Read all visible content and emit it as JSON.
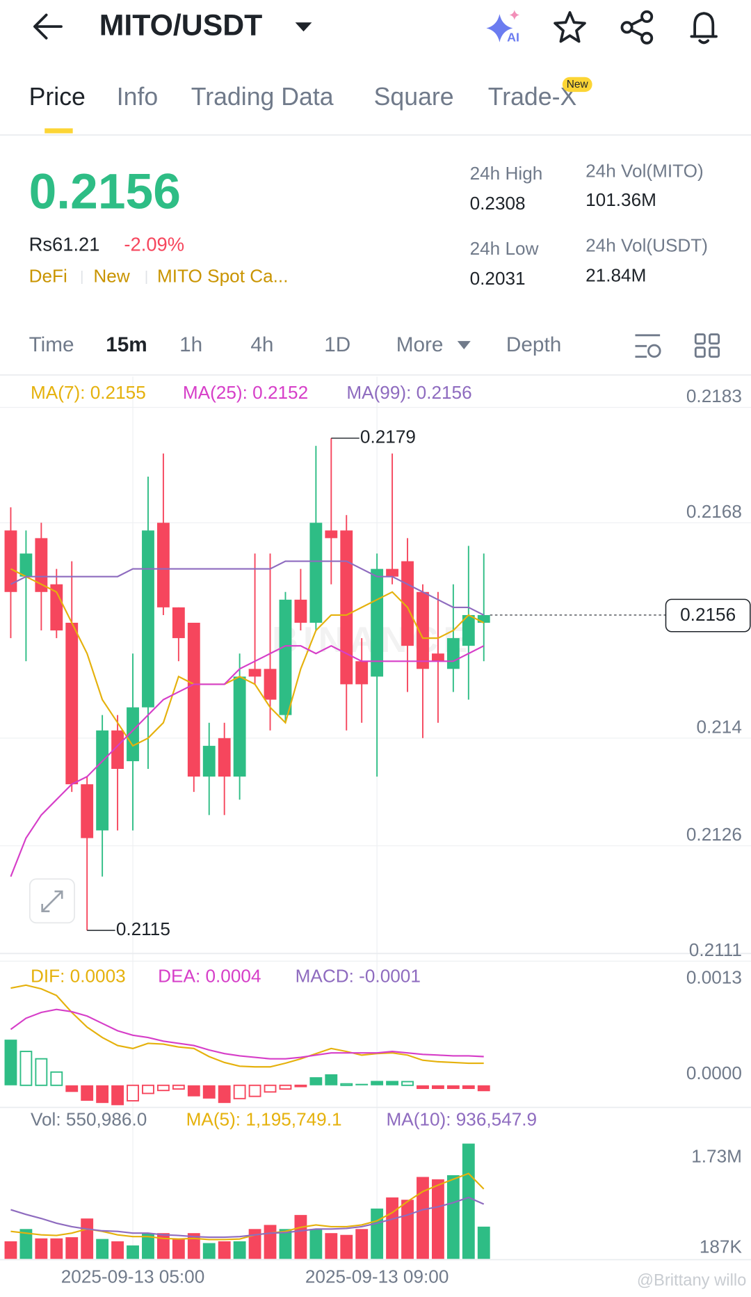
{
  "header": {
    "title": "MITO/USDT",
    "ai_label": "AI"
  },
  "tabs": [
    "Price",
    "Info",
    "Trading Data",
    "Square",
    "Trade-X"
  ],
  "new_badge": "New",
  "ticker": {
    "price": "0.2156",
    "fiat": "Rs61.21",
    "change": "-2.09%",
    "tags": [
      "DeFi",
      "New",
      "MITO Spot Ca..."
    ],
    "stats": [
      {
        "label": "24h High",
        "value": "0.2308"
      },
      {
        "label": "24h Low",
        "value": "0.2031"
      },
      {
        "label": "24h Vol(MITO)",
        "value": "101.36M"
      },
      {
        "label": "24h Vol(USDT)",
        "value": "21.84M"
      }
    ]
  },
  "intervals": [
    "Time",
    "15m",
    "1h",
    "4h",
    "1D",
    "More",
    "Depth"
  ],
  "watermark": "@Brittany willo",
  "brand_watermark": "BINANCE",
  "chart_data": [
    {
      "type": "candlestick",
      "legend": [
        "MA(7): 0.2155",
        "MA(25): 0.2152",
        "MA(99): 0.2156"
      ],
      "categories": [
        null,
        null,
        null,
        null,
        null,
        null,
        null,
        null,
        "2025-09-13 05:00",
        null,
        null,
        null,
        null,
        null,
        null,
        null,
        null,
        null,
        null,
        null,
        null,
        null,
        null,
        null,
        "2025-09-13 09:00",
        null,
        null,
        null,
        null,
        null,
        null,
        null
      ],
      "open": [
        0.2167,
        0.2161,
        0.2166,
        0.216,
        0.2155,
        0.2134,
        0.2128,
        0.2141,
        0.2137,
        0.2144,
        0.2168,
        0.2157,
        0.2155,
        0.2135,
        0.214,
        0.2135,
        0.2149,
        0.2149,
        0.2143,
        0.2158,
        0.2155,
        0.2167,
        0.2167,
        0.215,
        0.2148,
        0.2162,
        0.2163,
        0.2159,
        0.2151,
        0.2149,
        0.2152,
        0.2155
      ],
      "high": [
        0.217,
        0.2167,
        0.2168,
        0.2162,
        0.2163,
        0.2135,
        0.2143,
        0.2143,
        0.2151,
        0.2174,
        0.2177,
        0.2157,
        0.2155,
        0.2142,
        0.2142,
        0.2151,
        0.2164,
        0.2164,
        0.2159,
        0.2162,
        0.2178,
        0.2179,
        0.2169,
        0.2153,
        0.2164,
        0.2177,
        0.2166,
        0.216,
        0.2159,
        0.216,
        0.2165,
        0.2164
      ],
      "low": [
        0.2153,
        0.215,
        0.2154,
        0.2153,
        0.2133,
        0.2115,
        0.2122,
        0.2128,
        0.2128,
        0.2136,
        0.2156,
        0.215,
        0.2133,
        0.213,
        0.213,
        0.2132,
        0.2147,
        0.2141,
        0.2142,
        0.2154,
        0.2154,
        0.216,
        0.2141,
        0.2142,
        0.2135,
        0.216,
        0.2146,
        0.214,
        0.2142,
        0.2146,
        0.2145,
        0.215
      ],
      "close": [
        0.2159,
        0.2164,
        0.2159,
        0.2154,
        0.2134,
        0.2127,
        0.2141,
        0.2136,
        0.2144,
        0.2167,
        0.2157,
        0.2153,
        0.2135,
        0.2139,
        0.2135,
        0.2148,
        0.2148,
        0.2145,
        0.2158,
        0.2155,
        0.2168,
        0.2166,
        0.2147,
        0.2147,
        0.2162,
        0.2161,
        0.2152,
        0.2149,
        0.215,
        0.2153,
        0.2156,
        0.2156
      ],
      "up_color": "#2ebd85",
      "down_color": "#f6465d",
      "series": [
        {
          "name": "MA(7)",
          "color": "#e5b10c",
          "values": [
            0.2162,
            0.2161,
            0.216,
            0.2159,
            0.2155,
            0.2151,
            0.2145,
            0.2142,
            0.2139,
            0.214,
            0.2142,
            0.2148,
            0.2147,
            0.2147,
            0.2147,
            0.2148,
            0.2147,
            0.2144,
            0.2142,
            0.2149,
            0.2154,
            0.2156,
            0.2156,
            0.2157,
            0.2158,
            0.2159,
            0.2157,
            0.2153,
            0.2153,
            0.2154,
            0.2156,
            0.2155
          ]
        },
        {
          "name": "MA(25)",
          "color": "#d63ec8",
          "values": [
            0.2122,
            0.2127,
            0.213,
            0.2132,
            0.2134,
            0.2135,
            0.2137,
            0.2139,
            0.2141,
            0.2143,
            0.2145,
            0.2146,
            0.2147,
            0.2147,
            0.2147,
            0.2149,
            0.215,
            0.2151,
            0.2152,
            0.2152,
            0.2151,
            0.2152,
            0.2151,
            0.215,
            0.215,
            0.215,
            0.215,
            0.215,
            0.215,
            0.215,
            0.2151,
            0.2152
          ]
        },
        {
          "name": "MA(99)",
          "color": "#8e6bbf",
          "values": [
            0.216,
            0.2161,
            0.2161,
            0.2161,
            0.2161,
            0.2161,
            0.2161,
            0.2161,
            0.2162,
            0.2162,
            0.2162,
            0.2162,
            0.2162,
            0.2162,
            0.2162,
            0.2162,
            0.2162,
            0.2162,
            0.2163,
            0.2163,
            0.2163,
            0.2163,
            0.2163,
            0.2162,
            0.2161,
            0.2161,
            0.216,
            0.2159,
            0.2158,
            0.2157,
            0.2157,
            0.2156
          ]
        }
      ],
      "high_label": 0.2179,
      "low_label": 0.2115,
      "last_price": 0.2156,
      "ylim": [
        0.2112,
        0.2187
      ],
      "yticks": [
        0.2183,
        0.2168,
        0.214,
        0.2126,
        0.2111
      ],
      "grid": true
    },
    {
      "type": "macd",
      "legend": [
        "DIF: 0.0003",
        "DEA: 0.0004",
        "MACD: -0.0001"
      ],
      "values": [
        0.00062,
        0.00046,
        0.00036,
        0.00018,
        -9e-05,
        -0.00021,
        -0.00024,
        -0.00027,
        -0.00021,
        -0.00011,
        -7e-05,
        -5e-05,
        -0.00015,
        -0.00018,
        -0.00024,
        -0.00018,
        -0.00015,
        -9e-05,
        -5e-05,
        -1e-05,
        0.00011,
        0.00015,
        2e-05,
        2e-05,
        6e-05,
        6e-05,
        5e-05,
        -5e-05,
        -5e-05,
        -5e-05,
        -5e-05,
        -8e-05
      ],
      "series": [
        {
          "name": "DIF",
          "color": "#e5b10c",
          "values": [
            0.00132,
            0.00136,
            0.00131,
            0.00122,
            0.00099,
            0.00079,
            0.00065,
            0.00054,
            0.0005,
            0.00057,
            0.00056,
            0.00052,
            0.0005,
            0.00039,
            0.00031,
            0.00026,
            0.00025,
            0.00025,
            0.0003,
            0.00036,
            0.00043,
            0.0005,
            0.00046,
            0.00041,
            0.00043,
            0.00044,
            0.00041,
            0.00034,
            0.00032,
            0.00031,
            0.0003,
            0.0003
          ]
        },
        {
          "name": "DEA",
          "color": "#d63ec8",
          "values": [
            0.00076,
            0.00091,
            0.00099,
            0.00103,
            0.001,
            0.00094,
            0.00084,
            0.00074,
            0.00068,
            0.00065,
            0.0006,
            0.00057,
            0.00054,
            0.00048,
            0.00043,
            0.0004,
            0.00038,
            0.00036,
            0.00036,
            0.00038,
            0.00041,
            0.00044,
            0.00044,
            0.00044,
            0.00044,
            0.00046,
            0.00044,
            0.00042,
            0.00041,
            0.0004,
            0.0004,
            0.00039
          ]
        }
      ],
      "ylim": [
        -0.0003,
        0.0017
      ],
      "yticks": [
        0.0013,
        {
          "value": 0,
          "label": "0.0000"
        }
      ]
    },
    {
      "type": "volume",
      "legend": [
        "Vol: 550,986.0",
        "MA(5): 1,195,749.1",
        "MA(10): 936,547.9"
      ],
      "values": [
        300000,
        510000,
        350000,
        350000,
        370000,
        690000,
        340000,
        300000,
        230000,
        440000,
        440000,
        350000,
        440000,
        270000,
        300000,
        300000,
        510000,
        580000,
        510000,
        750000,
        510000,
        440000,
        410000,
        510000,
        860000,
        1050000,
        1010000,
        1400000,
        1360000,
        1430000,
        1970000,
        550986
      ],
      "series": [
        {
          "name": "MA(5)",
          "color": "#e5b10c",
          "values": [
            470000,
            440000,
            410000,
            400000,
            440000,
            510000,
            470000,
            410000,
            380000,
            380000,
            350000,
            340000,
            350000,
            330000,
            330000,
            340000,
            410000,
            440000,
            470000,
            540000,
            580000,
            550000,
            550000,
            580000,
            650000,
            790000,
            980000,
            1150000,
            1260000,
            1360000,
            1460000,
            1195749.1
          ]
        },
        {
          "name": "MA(10)",
          "color": "#8e6bbf",
          "values": [
            840000,
            760000,
            690000,
            610000,
            550000,
            510000,
            480000,
            470000,
            440000,
            440000,
            410000,
            400000,
            380000,
            370000,
            370000,
            380000,
            410000,
            440000,
            450000,
            480000,
            510000,
            510000,
            520000,
            550000,
            610000,
            680000,
            750000,
            840000,
            890000,
            960000,
            1050000,
            936547.9
          ]
        }
      ],
      "ylim": [
        0,
        2560000
      ],
      "yticks": [
        {
          "value": 1730000,
          "label": "1.73M"
        },
        {
          "value": 187000,
          "label": "187K"
        }
      ]
    }
  ]
}
